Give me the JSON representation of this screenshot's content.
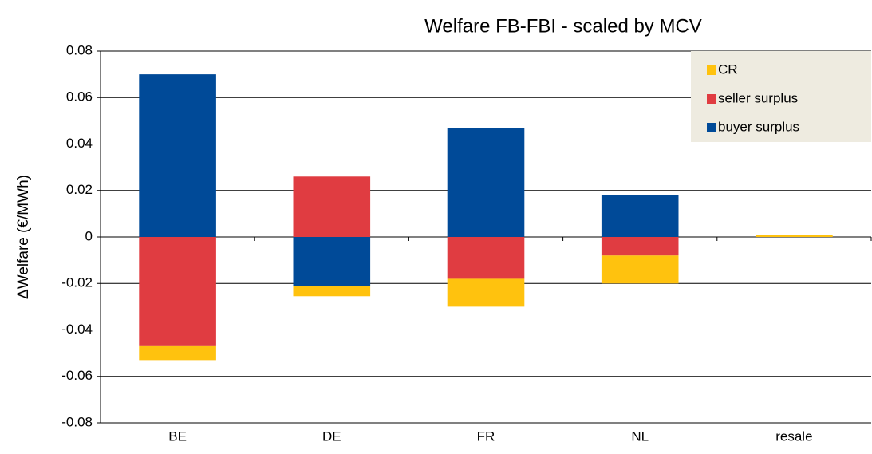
{
  "chart_data": {
    "type": "stacked-bar",
    "title": "Welfare FB-FBI - scaled by MCV",
    "y_label": "ΔWelfare (€/MWh)",
    "categories": [
      "BE",
      "DE",
      "FR",
      "NL",
      "resale"
    ],
    "series": [
      {
        "name": "buyer surplus",
        "color": "#004a98",
        "values": [
          0.07,
          -0.021,
          0.047,
          0.018,
          0
        ]
      },
      {
        "name": "seller surplus",
        "color": "#e03c41",
        "values": [
          -0.047,
          0.026,
          -0.018,
          -0.008,
          0
        ]
      },
      {
        "name": "CR",
        "color": "#ffc20e",
        "values": [
          -0.006,
          -0.0045,
          -0.012,
          -0.012,
          0.001
        ]
      }
    ],
    "ylim": [
      -0.08,
      0.08
    ],
    "yticks": [
      -0.08,
      -0.06,
      -0.04,
      -0.02,
      0,
      0.02,
      0.04,
      0.06,
      0.08
    ],
    "grid": true,
    "legend": "upper right"
  }
}
